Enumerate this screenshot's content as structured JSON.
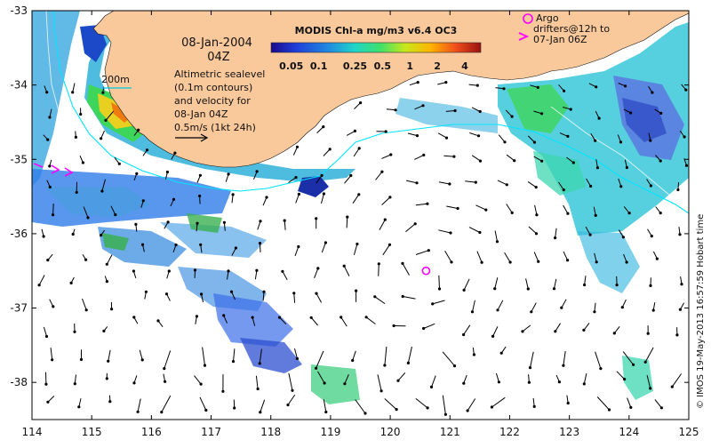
{
  "map": {
    "lon_ticks": [
      "114",
      "115",
      "116",
      "117",
      "118",
      "119",
      "120",
      "121",
      "122",
      "123",
      "124",
      "125"
    ],
    "lat_ticks": [
      "-33",
      "-34",
      "-35",
      "-36",
      "-37",
      "-38"
    ],
    "lon_range": [
      114,
      125
    ],
    "lat_range": [
      -38.5,
      -33
    ]
  },
  "annotations": {
    "date": "08-Jan-2004",
    "time": "04Z",
    "contour_label": "200m",
    "altimetric_lines": [
      "Altimetric sealevel",
      "(0.1m contours)",
      "and velocity for",
      "08-Jan 04Z"
    ],
    "scale_label": "0.5m/s (1kt 24h)",
    "argo_lines": [
      "Argo",
      "drifters@12h to",
      "07-Jan 06Z"
    ],
    "credit": "© IMOS 19-May-2013 16:57:59 Hobart time"
  },
  "colorbar": {
    "title": "MODIS Chl-a mg/m3 v6.4 OC3",
    "labels": [
      "0.05",
      "0.1",
      "0.25",
      "0.5",
      "1",
      "2",
      "4"
    ]
  },
  "colors": {
    "land": "#f9c89b",
    "contour": "#00e5ff",
    "argo": "#ff00ff",
    "arrow": "#000000"
  },
  "argo_positions": [
    {
      "lon": 120.6,
      "lat": -36.5
    }
  ]
}
